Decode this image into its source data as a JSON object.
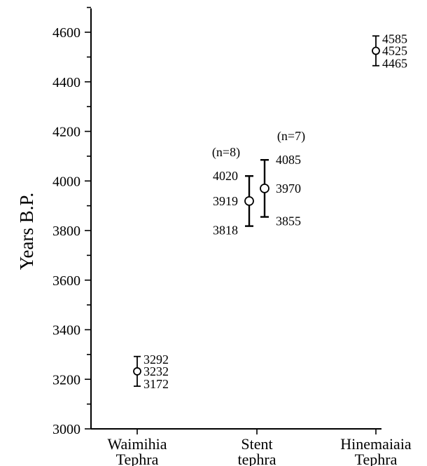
{
  "chart_data": {
    "type": "scatter",
    "ylabel": "Years B.P.",
    "ylim": [
      3000,
      4700
    ],
    "yticks": [
      3000,
      3200,
      3400,
      3600,
      3800,
      4000,
      4200,
      4400,
      4600
    ],
    "categories": [
      {
        "line1": "Waimihia",
        "line2": "Tephra"
      },
      {
        "line1": "Stent",
        "line2": "tephra"
      },
      {
        "line1": "Hinemaiaia",
        "line2": "Tephra"
      }
    ],
    "points": [
      {
        "category": 0,
        "value": 3232,
        "lower": 3172,
        "upper": 3292,
        "value_label": "3232",
        "lower_label": "3172",
        "upper_label": "3292",
        "n_label": ""
      },
      {
        "category": 1,
        "value": 3919,
        "lower": 3818,
        "upper": 4020,
        "value_label": "3919",
        "lower_label": "3818",
        "upper_label": "4020",
        "n_label": "(n=8)"
      },
      {
        "category": 1,
        "value": 3970,
        "lower": 3855,
        "upper": 4085,
        "value_label": "3970",
        "lower_label": "3855",
        "upper_label": "4085",
        "n_label": "(n=7)"
      },
      {
        "category": 2,
        "value": 4525,
        "lower": 4465,
        "upper": 4585,
        "value_label": "4525",
        "lower_label": "4465",
        "upper_label": "4585",
        "n_label": ""
      }
    ]
  }
}
